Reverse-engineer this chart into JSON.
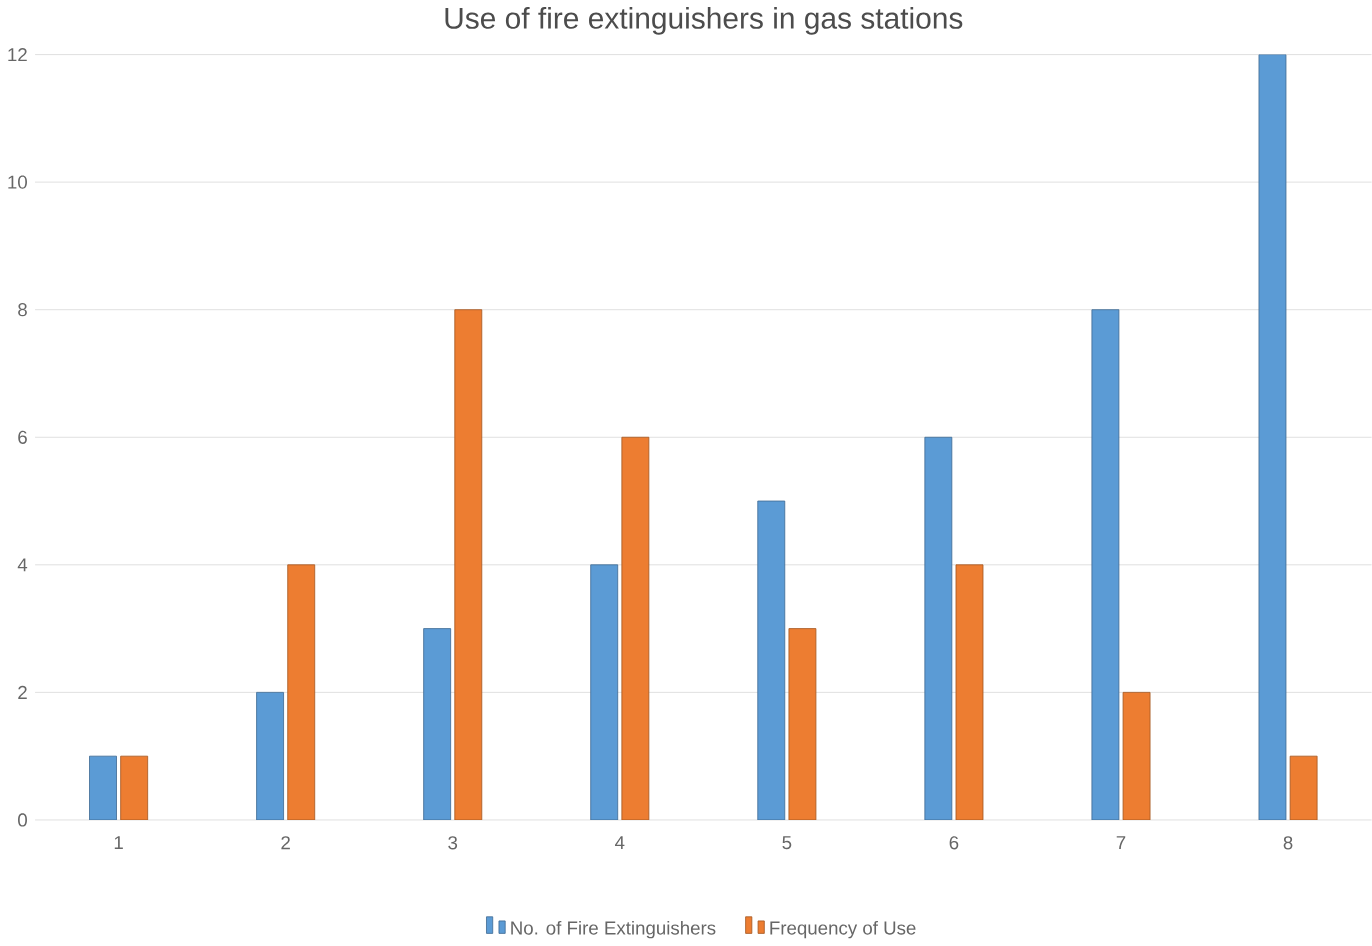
{
  "chart_data": {
    "type": "bar",
    "title": "Use of fire extinguishers in gas stations",
    "categories": [
      "1",
      "2",
      "3",
      "4",
      "5",
      "6",
      "7",
      "8"
    ],
    "series": [
      {
        "name": "No. of Fire Extinguishers",
        "color": "#5b9bd5",
        "values": [
          1,
          2,
          3,
          4,
          5,
          6,
          8,
          12
        ]
      },
      {
        "name": "Frequency of Use",
        "color": "#ed7d31",
        "values": [
          1,
          4,
          8,
          6,
          3,
          4,
          2,
          1
        ]
      }
    ],
    "ylim": [
      0,
      12
    ],
    "yticks": [
      0,
      2,
      4,
      6,
      8,
      10,
      12
    ],
    "grid": "y",
    "legend": "bottom"
  }
}
